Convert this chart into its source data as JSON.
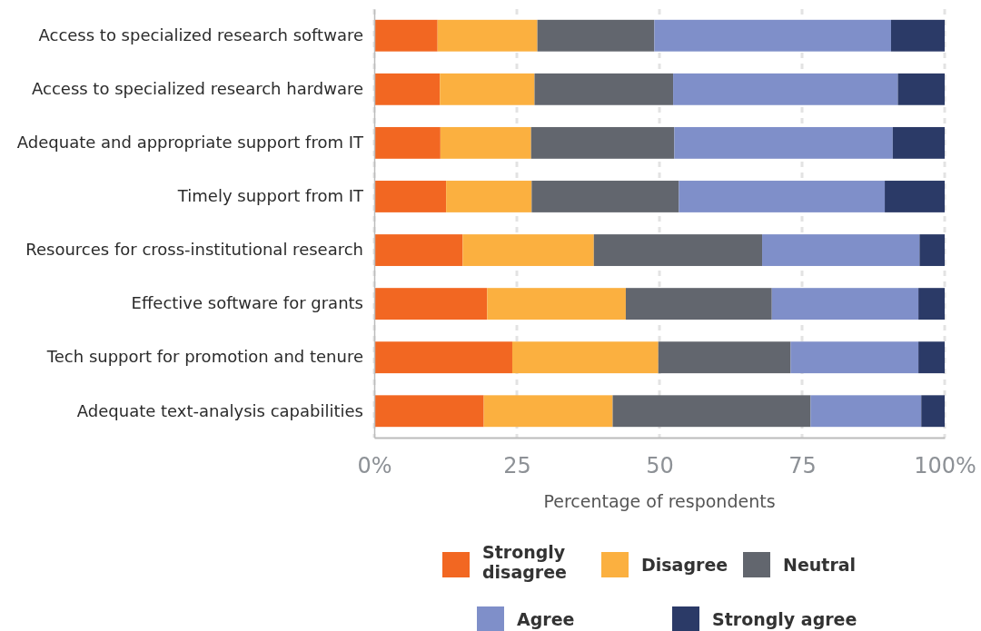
{
  "chart_data": {
    "type": "bar",
    "orientation": "horizontal",
    "stacked": true,
    "categories": [
      "Access to specialized research software",
      "Access to specialized research hardware",
      "Adequate and appropriate support from IT",
      "Timely support from IT",
      "Resources for cross-institutional research",
      "Effective software for grants",
      "Tech support for promotion and tenure",
      "Adequate text-analysis capabilities"
    ],
    "series": [
      {
        "name": "Strongly disagree",
        "color": "#f26722",
        "values": [
          11.1,
          11.5,
          11.6,
          12.6,
          15.5,
          19.8,
          24.2,
          19.2
        ]
      },
      {
        "name": "Disagree",
        "color": "#fbb040",
        "values": [
          17.5,
          16.6,
          15.9,
          15.0,
          23.0,
          24.3,
          25.6,
          22.6
        ]
      },
      {
        "name": "Neutral",
        "color": "#62666e",
        "values": [
          20.5,
          24.3,
          25.1,
          25.8,
          29.5,
          25.6,
          23.2,
          34.7
        ]
      },
      {
        "name": "Agree",
        "color": "#7f8fc9",
        "values": [
          41.5,
          39.4,
          38.3,
          36.1,
          27.6,
          25.7,
          22.4,
          19.4
        ]
      },
      {
        "name": "Strongly agree",
        "color": "#2b3a67",
        "values": [
          9.4,
          8.2,
          9.1,
          10.5,
          4.4,
          4.6,
          4.6,
          4.1
        ]
      }
    ],
    "xlim": [
      0,
      100
    ],
    "xticks": [
      {
        "value": 0,
        "label": "0%"
      },
      25,
      50,
      75,
      {
        "value": 100,
        "label": "100%"
      }
    ],
    "xlabel": "Percentage of respondents",
    "grid": "x",
    "legend": "bottom"
  }
}
